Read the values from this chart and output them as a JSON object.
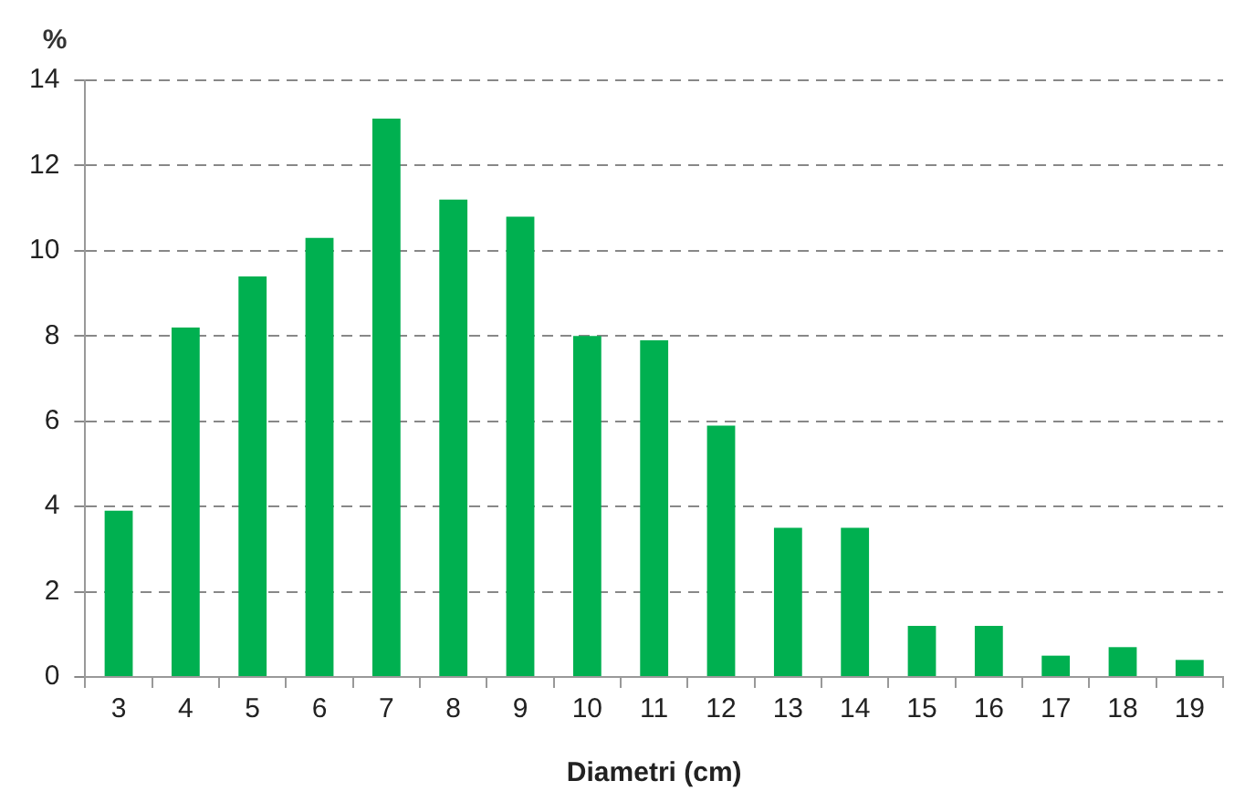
{
  "chart_data": {
    "type": "bar",
    "xlabel": "Diametri (cm)",
    "ylabel": "%",
    "categories": [
      "3",
      "4",
      "5",
      "6",
      "7",
      "8",
      "9",
      "10",
      "11",
      "12",
      "13",
      "14",
      "15",
      "16",
      "17",
      "18",
      "19"
    ],
    "values": [
      3.9,
      8.2,
      9.4,
      10.3,
      13.1,
      11.2,
      10.8,
      8.0,
      7.9,
      5.9,
      3.5,
      3.5,
      1.2,
      1.2,
      0.5,
      0.7,
      0.4
    ],
    "color": "#00b050",
    "ylim": [
      0,
      14
    ],
    "yticks": [
      0,
      2,
      4,
      6,
      8,
      10,
      12,
      14
    ],
    "grid": "y",
    "legend": false
  }
}
